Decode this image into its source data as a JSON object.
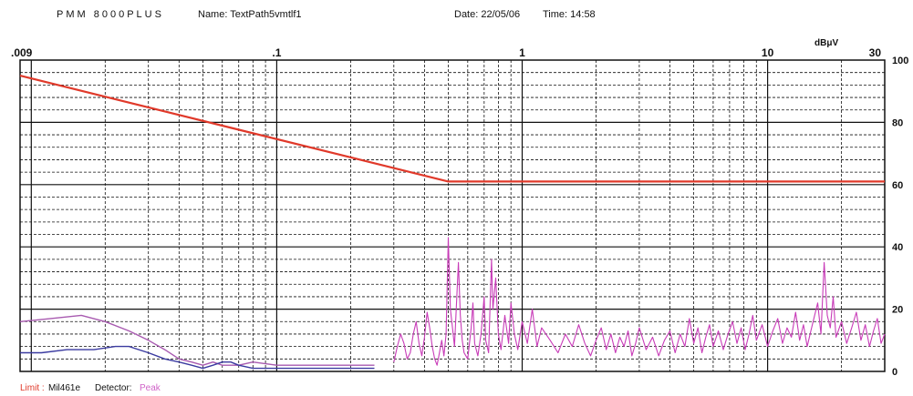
{
  "header": {
    "model": "PMM 8000PLUS",
    "name": "Name: TextPath5vmtlf1",
    "date": "Date: 22/05/06",
    "time": "Time: 14:58"
  },
  "footer": {
    "limit_label": "Limit :",
    "limit_value": "Mil461e",
    "detector_label": "Detector:",
    "detector_value": "Peak"
  },
  "colors": {
    "limit": "#e0392a",
    "peak_trace": "#c83cb8",
    "trace_low_purple": "#a85ab0",
    "trace_low_blue": "#3a3aa0",
    "grid": "#111111"
  },
  "chart_data": {
    "type": "line",
    "title": "",
    "xlabel": "",
    "ylabel": "dBμV",
    "x_scale": "log",
    "xlim": [
      0.009,
      30
    ],
    "ylim": [
      0,
      100
    ],
    "x_tick_labels": [
      ".009",
      ".1",
      "1",
      "10",
      "30"
    ],
    "x_tick_values": [
      0.009,
      0.1,
      1,
      10,
      30
    ],
    "y_tick_labels": [
      "100",
      "80",
      "60",
      "40",
      "20",
      "0"
    ],
    "y_tick_values": [
      100,
      80,
      60,
      40,
      20,
      0
    ],
    "grid": true,
    "series": [
      {
        "role": "limit",
        "points": [
          [
            0.009,
            95
          ],
          [
            0.5,
            61
          ],
          [
            30,
            61
          ]
        ]
      },
      {
        "role": "low-purple",
        "points": [
          [
            0.009,
            16
          ],
          [
            0.012,
            17
          ],
          [
            0.016,
            18
          ],
          [
            0.02,
            16
          ],
          [
            0.025,
            13
          ],
          [
            0.03,
            10
          ],
          [
            0.035,
            7
          ],
          [
            0.04,
            4
          ],
          [
            0.045,
            3
          ],
          [
            0.05,
            2
          ],
          [
            0.055,
            3
          ],
          [
            0.06,
            2
          ],
          [
            0.07,
            2
          ],
          [
            0.08,
            3
          ],
          [
            0.1,
            2
          ],
          [
            0.12,
            2
          ],
          [
            0.15,
            2
          ],
          [
            0.2,
            2
          ],
          [
            0.25,
            2
          ]
        ]
      },
      {
        "role": "low-blue",
        "points": [
          [
            0.009,
            6
          ],
          [
            0.011,
            6
          ],
          [
            0.014,
            7
          ],
          [
            0.018,
            7
          ],
          [
            0.022,
            8
          ],
          [
            0.025,
            8
          ],
          [
            0.03,
            6
          ],
          [
            0.035,
            4
          ],
          [
            0.04,
            3
          ],
          [
            0.045,
            2
          ],
          [
            0.05,
            1
          ],
          [
            0.055,
            2
          ],
          [
            0.06,
            3
          ],
          [
            0.065,
            3
          ],
          [
            0.07,
            2
          ],
          [
            0.08,
            1
          ],
          [
            0.1,
            1
          ],
          [
            0.12,
            1
          ],
          [
            0.15,
            1
          ],
          [
            0.2,
            1
          ],
          [
            0.25,
            1
          ]
        ]
      },
      {
        "role": "peak",
        "points": [
          [
            0.3,
            3
          ],
          [
            0.31,
            8
          ],
          [
            0.32,
            12
          ],
          [
            0.33,
            9
          ],
          [
            0.34,
            4
          ],
          [
            0.35,
            6
          ],
          [
            0.36,
            12
          ],
          [
            0.37,
            16
          ],
          [
            0.38,
            9
          ],
          [
            0.39,
            5
          ],
          [
            0.4,
            11
          ],
          [
            0.41,
            19
          ],
          [
            0.42,
            14
          ],
          [
            0.43,
            8
          ],
          [
            0.44,
            4
          ],
          [
            0.45,
            2
          ],
          [
            0.46,
            6
          ],
          [
            0.47,
            10
          ],
          [
            0.48,
            5
          ],
          [
            0.49,
            12
          ],
          [
            0.5,
            43
          ],
          [
            0.51,
            20
          ],
          [
            0.52,
            14
          ],
          [
            0.53,
            8
          ],
          [
            0.55,
            35
          ],
          [
            0.56,
            18
          ],
          [
            0.57,
            10
          ],
          [
            0.58,
            6
          ],
          [
            0.6,
            4
          ],
          [
            0.62,
            14
          ],
          [
            0.63,
            22
          ],
          [
            0.64,
            9
          ],
          [
            0.66,
            5
          ],
          [
            0.68,
            12
          ],
          [
            0.7,
            24
          ],
          [
            0.71,
            10
          ],
          [
            0.73,
            6
          ],
          [
            0.75,
            36
          ],
          [
            0.76,
            20
          ],
          [
            0.78,
            30
          ],
          [
            0.8,
            12
          ],
          [
            0.82,
            7
          ],
          [
            0.85,
            18
          ],
          [
            0.88,
            9
          ],
          [
            0.9,
            22
          ],
          [
            0.93,
            12
          ],
          [
            0.96,
            7
          ],
          [
            1.0,
            16
          ],
          [
            1.05,
            9
          ],
          [
            1.1,
            20
          ],
          [
            1.15,
            8
          ],
          [
            1.2,
            14
          ],
          [
            1.3,
            10
          ],
          [
            1.4,
            6
          ],
          [
            1.5,
            12
          ],
          [
            1.6,
            8
          ],
          [
            1.7,
            15
          ],
          [
            1.8,
            9
          ],
          [
            1.9,
            5
          ],
          [
            2.0,
            10
          ],
          [
            2.1,
            14
          ],
          [
            2.2,
            7
          ],
          [
            2.3,
            12
          ],
          [
            2.4,
            6
          ],
          [
            2.5,
            11
          ],
          [
            2.6,
            8
          ],
          [
            2.7,
            13
          ],
          [
            2.8,
            5
          ],
          [
            2.9,
            9
          ],
          [
            3.0,
            14
          ],
          [
            3.2,
            7
          ],
          [
            3.4,
            11
          ],
          [
            3.6,
            5
          ],
          [
            3.8,
            10
          ],
          [
            4.0,
            13
          ],
          [
            4.2,
            6
          ],
          [
            4.4,
            12
          ],
          [
            4.6,
            8
          ],
          [
            4.8,
            17
          ],
          [
            5.0,
            9
          ],
          [
            5.2,
            14
          ],
          [
            5.4,
            6
          ],
          [
            5.6,
            11
          ],
          [
            5.8,
            15
          ],
          [
            6.0,
            8
          ],
          [
            6.3,
            13
          ],
          [
            6.6,
            7
          ],
          [
            6.9,
            12
          ],
          [
            7.2,
            16
          ],
          [
            7.5,
            9
          ],
          [
            7.8,
            14
          ],
          [
            8.1,
            7
          ],
          [
            8.4,
            12
          ],
          [
            8.7,
            18
          ],
          [
            9.0,
            10
          ],
          [
            9.5,
            15
          ],
          [
            10,
            8
          ],
          [
            10.5,
            13
          ],
          [
            11,
            17
          ],
          [
            11.5,
            9
          ],
          [
            12,
            14
          ],
          [
            12.5,
            11
          ],
          [
            13,
            19
          ],
          [
            13.5,
            10
          ],
          [
            14,
            15
          ],
          [
            14.5,
            8
          ],
          [
            15,
            13
          ],
          [
            16,
            22
          ],
          [
            16.5,
            12
          ],
          [
            17,
            35
          ],
          [
            17.5,
            18
          ],
          [
            18,
            14
          ],
          [
            18.5,
            24
          ],
          [
            19,
            11
          ],
          [
            20,
            16
          ],
          [
            21,
            9
          ],
          [
            22,
            14
          ],
          [
            23,
            19
          ],
          [
            24,
            10
          ],
          [
            25,
            15
          ],
          [
            26,
            8
          ],
          [
            27,
            13
          ],
          [
            28,
            17
          ],
          [
            29,
            9
          ],
          [
            30,
            12
          ]
        ]
      }
    ]
  }
}
